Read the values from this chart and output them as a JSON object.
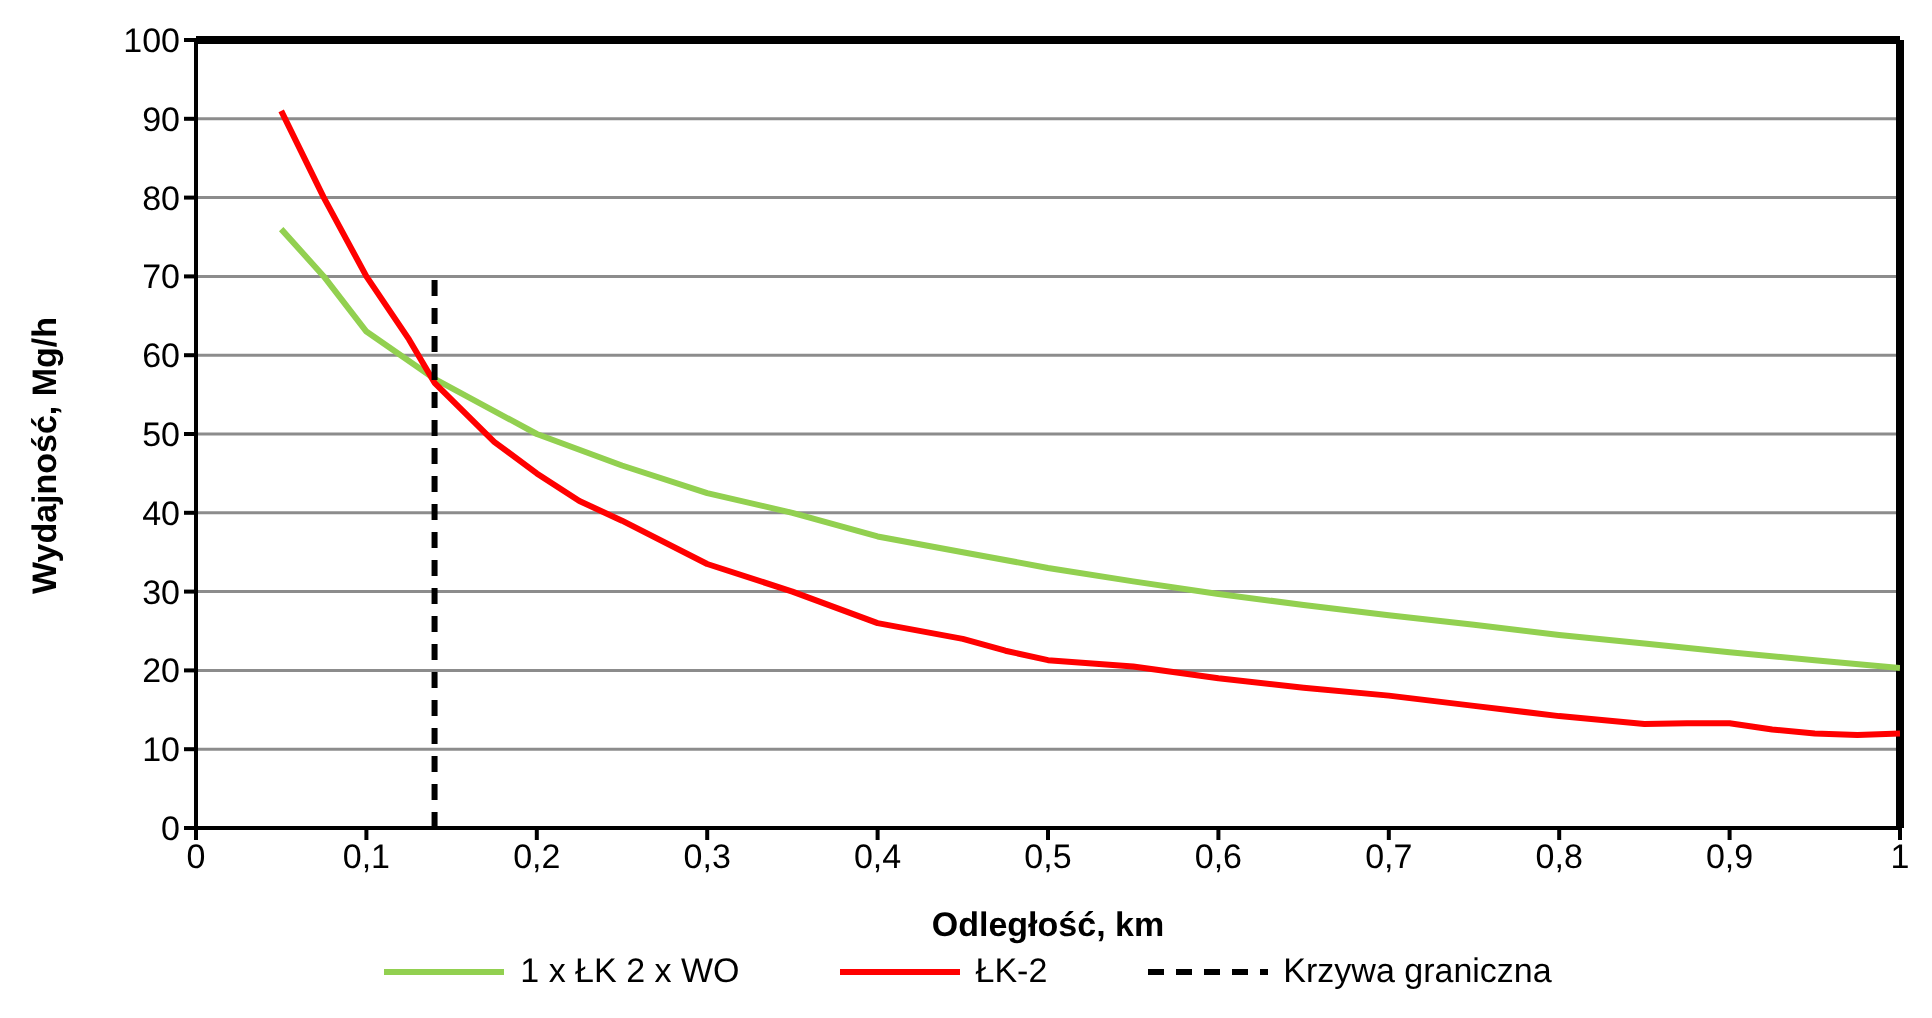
{
  "chart_data": {
    "type": "line",
    "xlabel": "Odległość, km",
    "ylabel": "Wydajność, Mg/h",
    "xlim": [
      0,
      1
    ],
    "ylim": [
      0,
      100
    ],
    "xticks": [
      0,
      {
        "value": 0.1,
        "label": "0,1"
      },
      {
        "value": 0.2,
        "label": "0,2"
      },
      {
        "value": 0.3,
        "label": "0,3"
      },
      {
        "value": 0.4,
        "label": "0,4"
      },
      {
        "value": 0.5,
        "label": "0,5"
      },
      {
        "value": 0.6,
        "label": "0,6"
      },
      {
        "value": 0.7,
        "label": "0,7"
      },
      {
        "value": 0.8,
        "label": "0,8"
      },
      {
        "value": 0.9,
        "label": "0,9"
      },
      1
    ],
    "yticks": [
      0,
      10,
      20,
      30,
      40,
      50,
      60,
      70,
      80,
      90,
      100
    ],
    "grid": "y",
    "legend": "bottom",
    "marker": "none",
    "series": [
      {
        "name": "1 x ŁK 2 x WO",
        "color": "#92d050",
        "line_style": "solid",
        "x": [
          0.05,
          0.075,
          0.1,
          0.14,
          0.2,
          0.25,
          0.3,
          0.35,
          0.4,
          0.45,
          0.5,
          0.55,
          0.6,
          0.65,
          0.7,
          0.75,
          0.8,
          0.85,
          0.9,
          0.95,
          1
        ],
        "values": [
          76,
          70,
          63,
          57,
          50,
          46,
          42.5,
          40,
          37,
          35,
          33,
          31.3,
          29.7,
          28.3,
          27,
          25.8,
          24.5,
          23.4,
          22.3,
          21.3,
          20.3
        ]
      },
      {
        "name": "ŁK-2",
        "color": "#ff0000",
        "line_style": "solid",
        "x": [
          0.05,
          0.075,
          0.1,
          0.125,
          0.14,
          0.175,
          0.2,
          0.225,
          0.25,
          0.3,
          0.35,
          0.4,
          0.45,
          0.475,
          0.5,
          0.55,
          0.6,
          0.65,
          0.7,
          0.75,
          0.8,
          0.85,
          0.875,
          0.9,
          0.925,
          0.95,
          0.975,
          1
        ],
        "values": [
          91,
          80,
          70,
          62,
          56.5,
          49,
          45,
          41.5,
          39,
          33.5,
          30,
          26,
          24,
          22.5,
          21.3,
          20.5,
          19,
          17.8,
          16.8,
          15.5,
          14.2,
          13.2,
          13.3,
          13.3,
          12.5,
          12,
          11.8,
          12
        ]
      },
      {
        "name": "Krzywa graniczna",
        "color": "#000000",
        "line_style": "dashed",
        "x": [
          0.14,
          0.14
        ],
        "values": [
          0,
          70
        ]
      }
    ]
  }
}
